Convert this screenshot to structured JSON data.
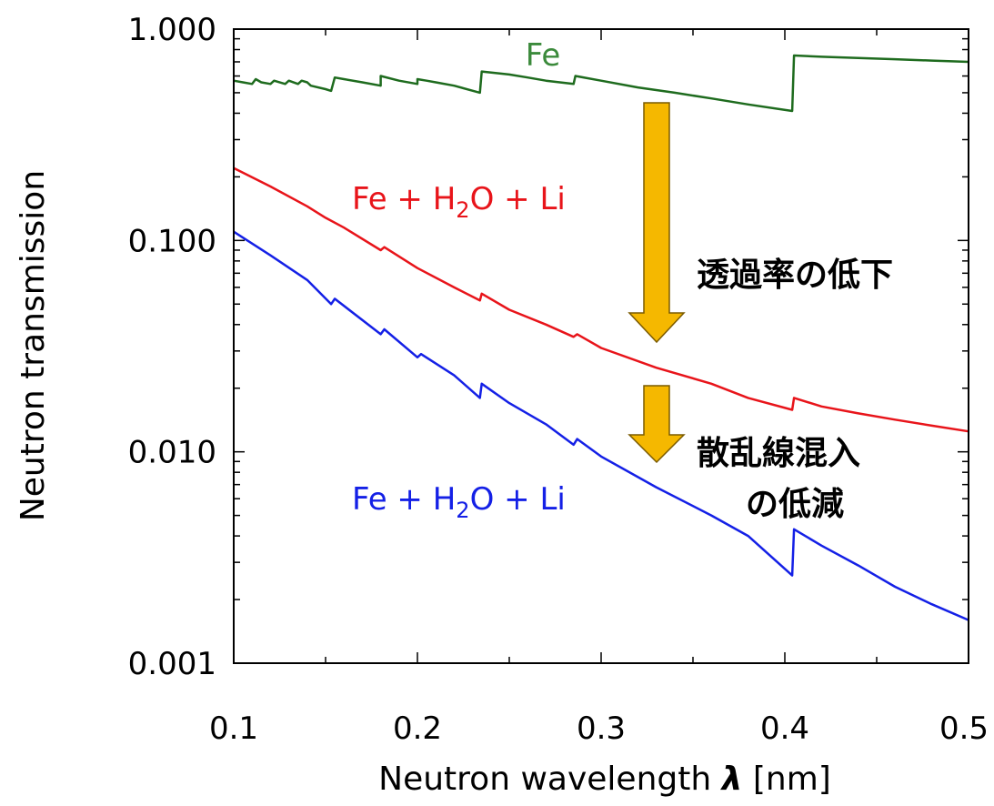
{
  "chart_data": {
    "type": "line",
    "xlabel_prefix": "Neutron wavelength ",
    "xlabel_symbol": "λ",
    "xlabel_suffix": " [nm]",
    "ylabel": "Neutron transmission",
    "xlim": [
      0.1,
      0.5
    ],
    "ylim": [
      0.001,
      1.0
    ],
    "yscale": "log",
    "grid": false,
    "x_ticks": [
      {
        "value": 0.1,
        "label": "0.1"
      },
      {
        "value": 0.2,
        "label": "0.2"
      },
      {
        "value": 0.3,
        "label": "0.3"
      },
      {
        "value": 0.4,
        "label": "0.4"
      },
      {
        "value": 0.5,
        "label": "0.5"
      }
    ],
    "y_ticks": [
      {
        "value": 0.001,
        "label": "0.001"
      },
      {
        "value": 0.01,
        "label": "0.010"
      },
      {
        "value": 0.1,
        "label": "0.100"
      },
      {
        "value": 1.0,
        "label": "1.000"
      }
    ],
    "series": [
      {
        "name": "Fe",
        "color": "#1e6b1e",
        "x": [
          0.1,
          0.105,
          0.11,
          0.112,
          0.115,
          0.12,
          0.122,
          0.128,
          0.13,
          0.135,
          0.137,
          0.14,
          0.142,
          0.15,
          0.153,
          0.155,
          0.16,
          0.17,
          0.18,
          0.18,
          0.19,
          0.2,
          0.2,
          0.205,
          0.21,
          0.22,
          0.234,
          0.235,
          0.25,
          0.26,
          0.27,
          0.285,
          0.286,
          0.3,
          0.32,
          0.34,
          0.36,
          0.38,
          0.404,
          0.405,
          0.42,
          0.44,
          0.46,
          0.48,
          0.5
        ],
        "y": [
          0.57,
          0.56,
          0.55,
          0.58,
          0.56,
          0.55,
          0.57,
          0.55,
          0.57,
          0.55,
          0.57,
          0.56,
          0.54,
          0.52,
          0.51,
          0.59,
          0.58,
          0.56,
          0.54,
          0.6,
          0.57,
          0.55,
          0.58,
          0.57,
          0.56,
          0.54,
          0.5,
          0.63,
          0.61,
          0.59,
          0.57,
          0.55,
          0.6,
          0.57,
          0.53,
          0.5,
          0.47,
          0.44,
          0.41,
          0.75,
          0.74,
          0.73,
          0.72,
          0.71,
          0.7
        ]
      },
      {
        "name": "Fe + H2O + Li",
        "color": "#e8141a",
        "x": [
          0.1,
          0.12,
          0.14,
          0.15,
          0.16,
          0.18,
          0.182,
          0.2,
          0.22,
          0.234,
          0.235,
          0.25,
          0.27,
          0.285,
          0.287,
          0.3,
          0.33,
          0.36,
          0.38,
          0.404,
          0.405,
          0.42,
          0.44,
          0.46,
          0.48,
          0.5
        ],
        "y": [
          0.22,
          0.18,
          0.145,
          0.128,
          0.115,
          0.09,
          0.093,
          0.074,
          0.06,
          0.052,
          0.056,
          0.047,
          0.04,
          0.035,
          0.036,
          0.031,
          0.025,
          0.021,
          0.018,
          0.0158,
          0.018,
          0.0164,
          0.0152,
          0.0142,
          0.0133,
          0.0125
        ]
      },
      {
        "name": "Fe + H2O + Li",
        "color": "#1420e6",
        "x": [
          0.1,
          0.12,
          0.14,
          0.153,
          0.155,
          0.18,
          0.182,
          0.2,
          0.202,
          0.22,
          0.234,
          0.235,
          0.25,
          0.27,
          0.285,
          0.287,
          0.3,
          0.33,
          0.36,
          0.38,
          0.404,
          0.405,
          0.42,
          0.44,
          0.46,
          0.48,
          0.5
        ],
        "y": [
          0.11,
          0.085,
          0.065,
          0.05,
          0.053,
          0.036,
          0.038,
          0.028,
          0.029,
          0.023,
          0.018,
          0.021,
          0.017,
          0.0135,
          0.0108,
          0.0115,
          0.0095,
          0.0068,
          0.005,
          0.004,
          0.0026,
          0.0043,
          0.0036,
          0.0029,
          0.0023,
          0.0019,
          0.0016
        ]
      }
    ],
    "series_labels": [
      {
        "base": "Fe",
        "sub": "",
        "rest": "",
        "color": "#3b8a3b"
      },
      {
        "base": "Fe + H",
        "sub": "2",
        "rest": "O + Li",
        "color": "#e8141a"
      },
      {
        "base": "Fe + H",
        "sub": "2",
        "rest": "O + Li",
        "color": "#1420e6"
      }
    ],
    "annotations": [
      {
        "text": "透過率の低下"
      },
      {
        "text": "散乱線混入"
      },
      {
        "text": "の低減"
      }
    ],
    "arrow_color": "#f5b800",
    "arrow_stroke": "#7a5a00"
  }
}
